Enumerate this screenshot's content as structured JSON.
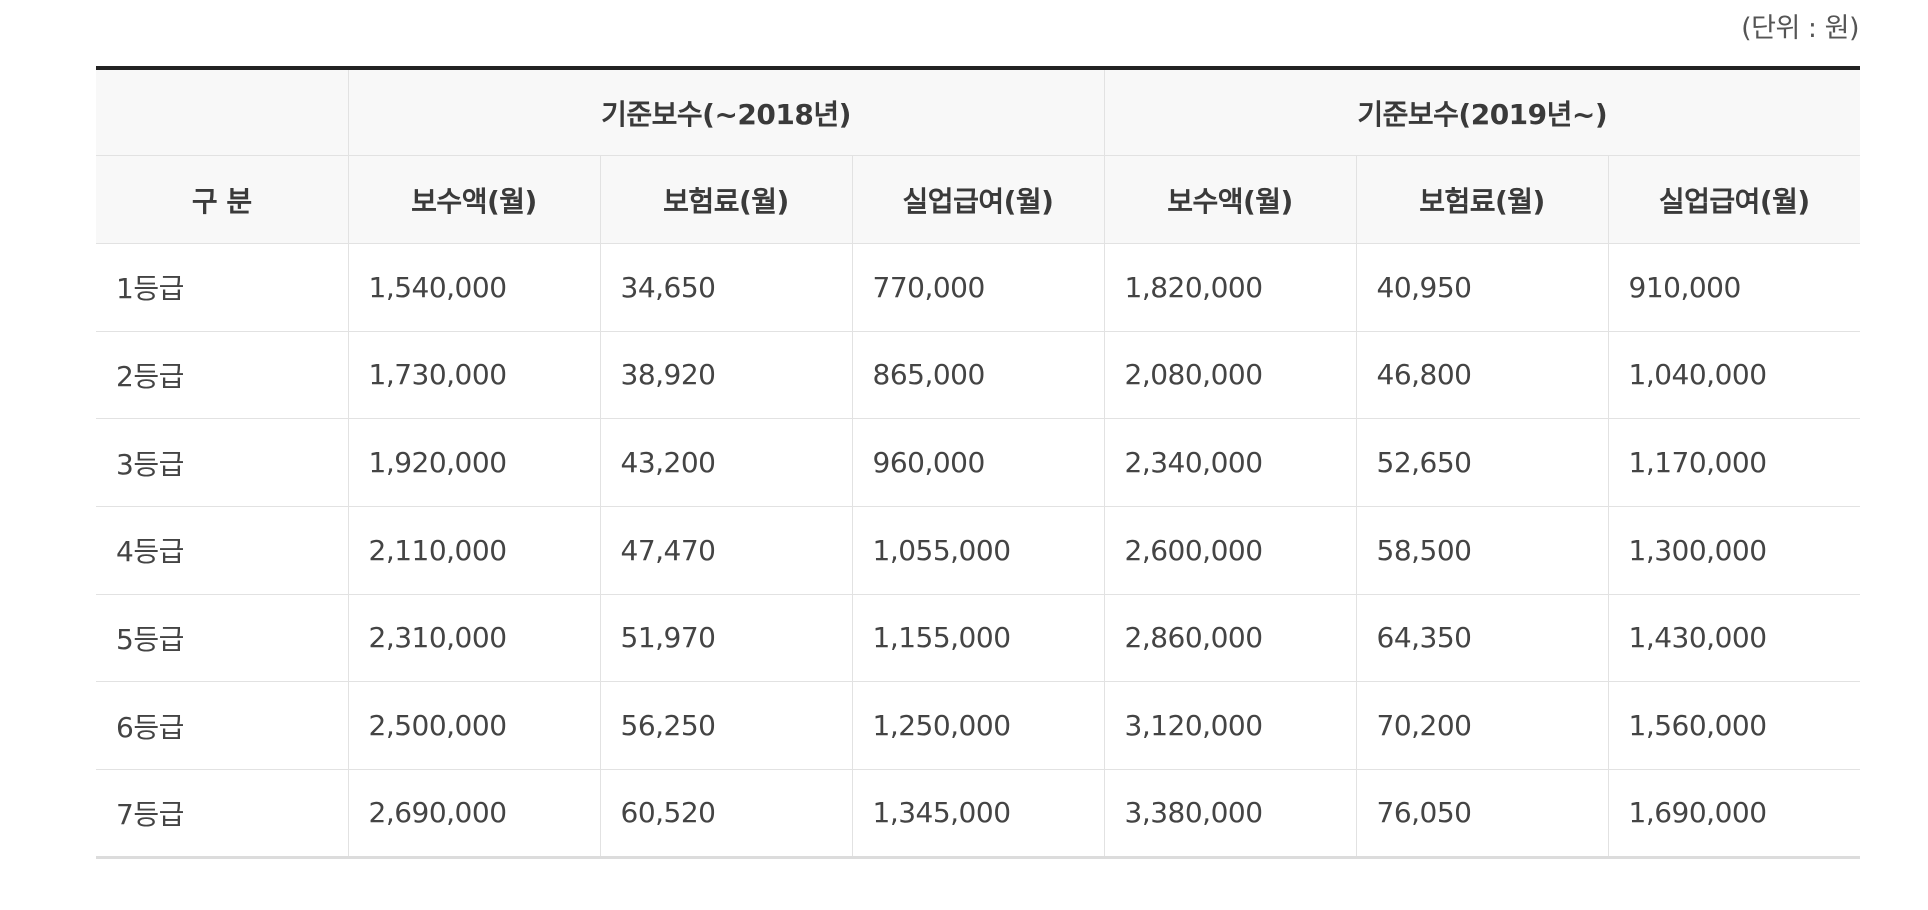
{
  "unit_note": "(단위 : 원)",
  "table": {
    "corner_label": "구 분",
    "group_headers": [
      "기준보수(~2018년)",
      "기준보수(2019년~)"
    ],
    "sub_headers": [
      "보수액(월)",
      "보험료(월)",
      "실업급여(월)",
      "보수액(월)",
      "보험료(월)",
      "실업급여(월)"
    ],
    "rows": [
      {
        "grade": "1등급",
        "cells": [
          "1,540,000",
          "34,650",
          "770,000",
          "1,820,000",
          "40,950",
          "910,000"
        ]
      },
      {
        "grade": "2등급",
        "cells": [
          "1,730,000",
          "38,920",
          "865,000",
          "2,080,000",
          "46,800",
          "1,040,000"
        ]
      },
      {
        "grade": "3등급",
        "cells": [
          "1,920,000",
          "43,200",
          "960,000",
          "2,340,000",
          "52,650",
          "1,170,000"
        ]
      },
      {
        "grade": "4등급",
        "cells": [
          "2,110,000",
          "47,470",
          "1,055,000",
          "2,600,000",
          "58,500",
          "1,300,000"
        ]
      },
      {
        "grade": "5등급",
        "cells": [
          "2,310,000",
          "51,970",
          "1,155,000",
          "2,860,000",
          "64,350",
          "1,430,000"
        ]
      },
      {
        "grade": "6등급",
        "cells": [
          "2,500,000",
          "56,250",
          "1,250,000",
          "3,120,000",
          "70,200",
          "1,560,000"
        ]
      },
      {
        "grade": "7등급",
        "cells": [
          "2,690,000",
          "60,520",
          "1,345,000",
          "3,380,000",
          "76,050",
          "1,690,000"
        ]
      }
    ]
  }
}
